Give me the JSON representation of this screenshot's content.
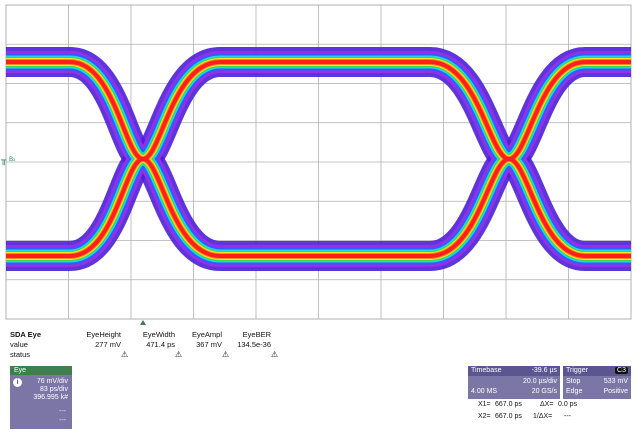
{
  "scope": {
    "ground_marker": "╥",
    "ground_label": "B₂",
    "palette": {
      "background": "#ffffff",
      "grid": "#b0b0b0",
      "outer": "#4b1fd8",
      "violet": "#9a2ee6",
      "blue": "#2f5bff",
      "cyan": "#1fd6e8",
      "green": "#2de04a",
      "yellow": "#f7e51c",
      "orange": "#ff8a1a",
      "red": "#ff1f1f"
    }
  },
  "measurements": {
    "title": "SDA Eye",
    "headers": [
      "EyeHeight",
      "EyeWidth",
      "EyeAmpl",
      "EyeBER"
    ],
    "value_label": "value",
    "values": [
      "277 mV",
      "471.4 ps",
      "367 mV",
      "134.5e-36"
    ],
    "status_label": "status",
    "status_icon": "⚠"
  },
  "channel": {
    "tab": "Eye",
    "info_icon": "i",
    "vdiv": "76 mV/div",
    "tdiv": "83 ps/div",
    "count": "396.995 k#",
    "dashes": [
      "---",
      "---"
    ]
  },
  "timebase": {
    "label": "Timebase",
    "delay": "-39.6 µs",
    "tdiv": "20.0 µs/div",
    "memory": "4.00 MS",
    "rate": "20 GS/s"
  },
  "trigger": {
    "label": "Trigger",
    "badge": "C3",
    "mode": "Stop",
    "level": "533 mV",
    "type": "Edge",
    "slope": "Positive"
  },
  "cursors": {
    "x1_label": "X1=",
    "x1": "667.0 ps",
    "dx_label": "ΔX=",
    "dx": "0.0 ps",
    "x2_label": "X2=",
    "x2": "667.0 ps",
    "inv_label": "1/ΔX=",
    "inv": "---"
  }
}
